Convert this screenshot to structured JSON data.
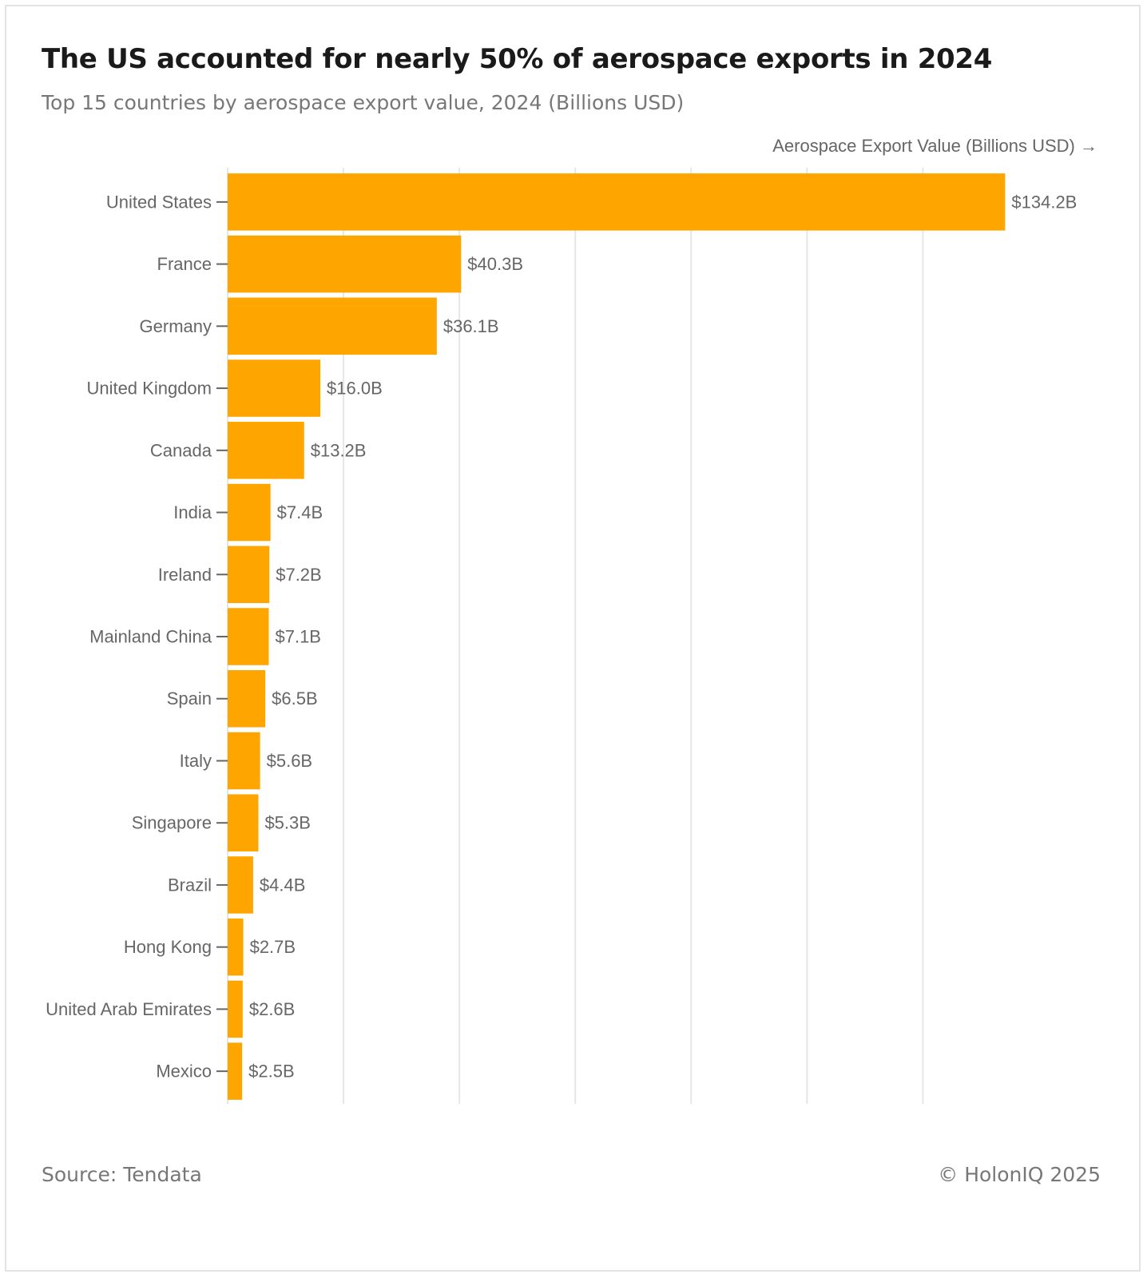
{
  "title": "The US accounted for nearly 50% of aerospace exports in 2024",
  "subtitle": "Top 15 countries by aerospace export value, 2024 (Billions USD)",
  "axis_note": "Aerospace Export Value (Billions USD) →",
  "footer": {
    "source": "Source: Tendata",
    "copyright": "© HolonIQ 2025"
  },
  "colors": {
    "bar": "#FFA500",
    "grid": "#e6e6e6",
    "tick": "#666666"
  },
  "chart_data": {
    "type": "bar",
    "orientation": "horizontal",
    "title": "The US accounted for nearly 50% of aerospace exports in 2024",
    "xlabel": "Aerospace Export Value (Billions USD) →",
    "ylabel": "",
    "xlim": [
      0,
      150
    ],
    "x_gridlines": [
      0,
      20,
      40,
      60,
      80,
      100,
      120
    ],
    "x_ticklabels_visible": false,
    "categories": [
      "United States",
      "France",
      "Germany",
      "United Kingdom",
      "Canada",
      "India",
      "Ireland",
      "Mainland China",
      "Spain",
      "Italy",
      "Singapore",
      "Brazil",
      "Hong Kong",
      "United Arab Emirates",
      "Mexico"
    ],
    "values": [
      134.2,
      40.3,
      36.1,
      16.0,
      13.2,
      7.4,
      7.2,
      7.1,
      6.5,
      5.6,
      5.3,
      4.4,
      2.7,
      2.6,
      2.5
    ],
    "value_labels": [
      "$134.2B",
      "$40.3B",
      "$36.1B",
      "$16.0B",
      "$13.2B",
      "$7.4B",
      "$7.2B",
      "$7.1B",
      "$6.5B",
      "$5.6B",
      "$5.3B",
      "$4.4B",
      "$2.7B",
      "$2.6B",
      "$2.5B"
    ]
  }
}
